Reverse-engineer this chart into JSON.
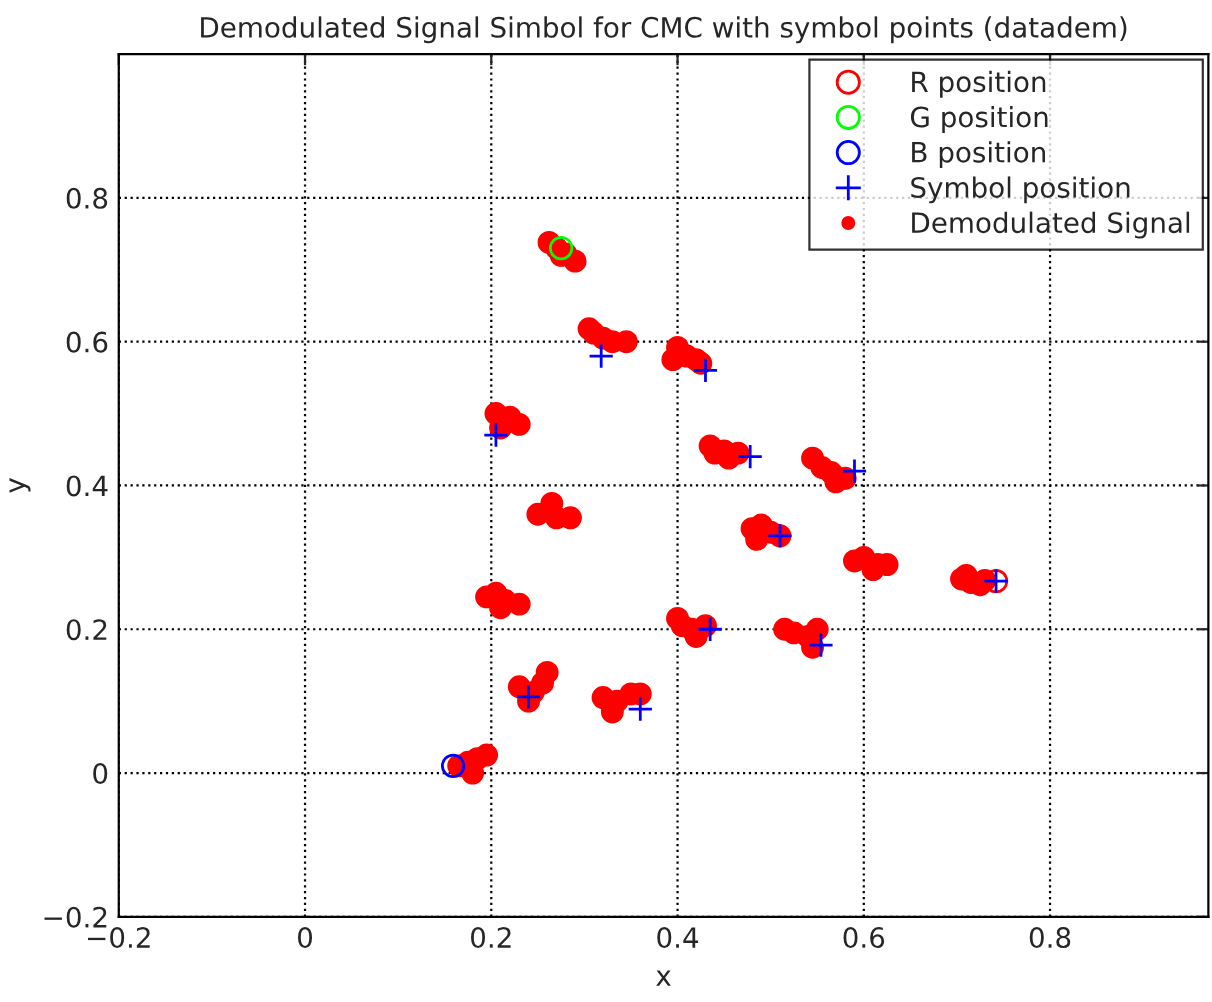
{
  "chart_data": {
    "type": "scatter",
    "title": "Demodulated Signal Simbol for CMC with symbol points (datadem)",
    "xlabel": "x",
    "ylabel": "y",
    "xlim": [
      -0.2,
      0.97
    ],
    "ylim": [
      -0.2,
      1.0
    ],
    "xticks": [
      {
        "value": -0.2,
        "label": "−0.2"
      },
      0,
      0.2,
      0.4,
      0.6,
      0.8
    ],
    "yticks": [
      {
        "value": -0.2,
        "label": "−0.2"
      },
      0,
      0.2,
      0.4,
      0.6,
      0.8
    ],
    "grid": true,
    "legend": "top right",
    "series": [
      {
        "name": "R position",
        "color": "#ff0000",
        "marker": "circle",
        "x": [
          0.742
        ],
        "values": [
          0.267
        ]
      },
      {
        "name": "G position",
        "color": "#00ff00",
        "marker": "circle",
        "x": [
          0.275
        ],
        "values": [
          0.73
        ]
      },
      {
        "name": "B position",
        "color": "#0000ff",
        "marker": "circle",
        "x": [
          0.159
        ],
        "values": [
          0.01
        ]
      },
      {
        "name": "Symbol position",
        "color": "#0000ff",
        "marker": "cross",
        "x": [
          0.318,
          0.43,
          0.205,
          0.478,
          0.59,
          0.51,
          0.742,
          0.24,
          0.36,
          0.435,
          0.554
        ],
        "values": [
          0.58,
          0.56,
          0.47,
          0.44,
          0.42,
          0.33,
          0.267,
          0.106,
          0.089,
          0.2,
          0.178
        ]
      },
      {
        "name": "Demodulated Signal",
        "color": "#ff0000",
        "marker": "circle",
        "x": [
          0.262,
          0.27,
          0.28,
          0.29,
          0.275,
          0.31,
          0.32,
          0.33,
          0.345,
          0.305,
          0.4,
          0.41,
          0.42,
          0.395,
          0.425,
          0.205,
          0.22,
          0.23,
          0.21,
          0.435,
          0.45,
          0.465,
          0.455,
          0.44,
          0.545,
          0.555,
          0.565,
          0.58,
          0.57,
          0.25,
          0.27,
          0.285,
          0.265,
          0.48,
          0.49,
          0.5,
          0.51,
          0.485,
          0.59,
          0.6,
          0.615,
          0.625,
          0.61,
          0.705,
          0.715,
          0.725,
          0.73,
          0.71,
          0.195,
          0.205,
          0.215,
          0.23,
          0.21,
          0.23,
          0.245,
          0.255,
          0.26,
          0.24,
          0.32,
          0.335,
          0.35,
          0.36,
          0.33,
          0.4,
          0.405,
          0.415,
          0.43,
          0.42,
          0.515,
          0.525,
          0.54,
          0.55,
          0.545,
          0.165,
          0.175,
          0.185,
          0.195,
          0.18
        ],
        "values": [
          0.738,
          0.73,
          0.722,
          0.712,
          0.72,
          0.612,
          0.605,
          0.6,
          0.6,
          0.618,
          0.592,
          0.58,
          0.575,
          0.575,
          0.57,
          0.5,
          0.495,
          0.485,
          0.48,
          0.455,
          0.448,
          0.445,
          0.438,
          0.445,
          0.438,
          0.425,
          0.418,
          0.41,
          0.405,
          0.36,
          0.355,
          0.355,
          0.375,
          0.34,
          0.345,
          0.335,
          0.33,
          0.325,
          0.295,
          0.3,
          0.29,
          0.29,
          0.283,
          0.27,
          0.265,
          0.262,
          0.268,
          0.275,
          0.245,
          0.25,
          0.24,
          0.235,
          0.23,
          0.12,
          0.112,
          0.125,
          0.14,
          0.1,
          0.105,
          0.1,
          0.11,
          0.11,
          0.085,
          0.215,
          0.205,
          0.2,
          0.205,
          0.19,
          0.2,
          0.195,
          0.19,
          0.2,
          0.175,
          0.01,
          0.015,
          0.02,
          0.025,
          0.0
        ]
      }
    ]
  }
}
